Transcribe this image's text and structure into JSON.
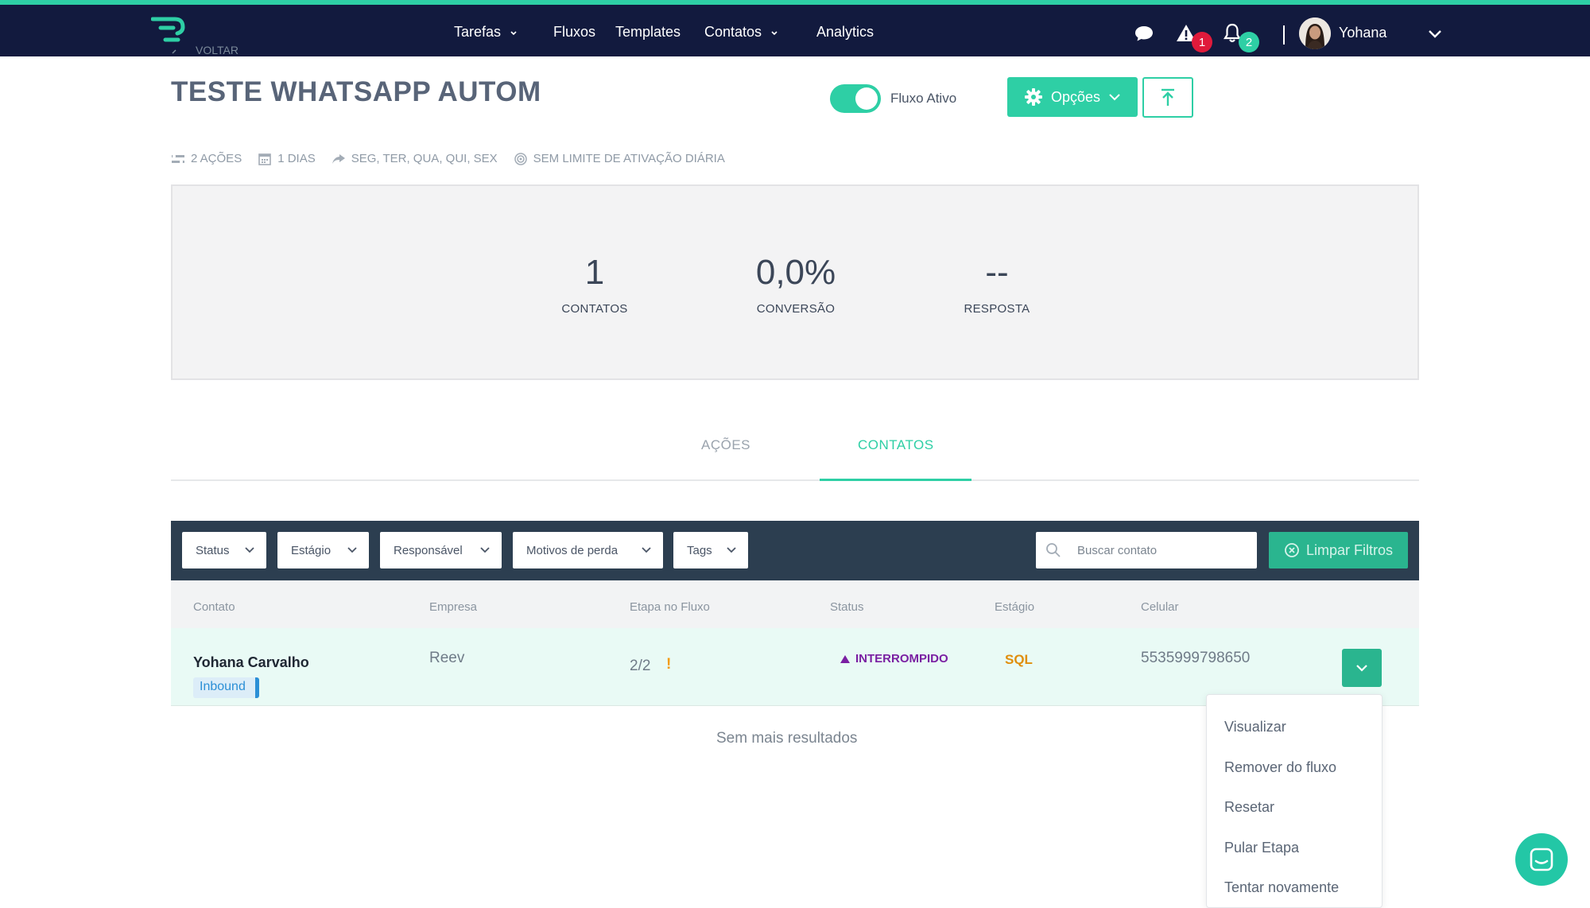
{
  "nav": {
    "items": [
      {
        "label": "Tarefas",
        "has_dropdown": true
      },
      {
        "label": "Fluxos",
        "has_dropdown": false
      },
      {
        "label": "Templates",
        "has_dropdown": false
      },
      {
        "label": "Contatos",
        "has_dropdown": true
      },
      {
        "label": "Analytics",
        "has_dropdown": false
      }
    ],
    "alert_count": "1",
    "notification_count": "2",
    "user_name": "Yohana"
  },
  "header": {
    "back_label": "VOLTAR",
    "title": "TESTE WHATSAPP AUTOM",
    "toggle_label": "Fluxo Ativo",
    "toggle_on": true,
    "options_label": "Opções"
  },
  "meta": {
    "actions": "2 AÇÕES",
    "days": "1 DIAS",
    "weekdays": "SEG, TER, QUA, QUI, SEX",
    "limit": "SEM LIMITE DE ATIVAÇÃO DIÁRIA"
  },
  "stats": [
    {
      "value": "1",
      "label": "CONTATOS"
    },
    {
      "value": "0,0%",
      "label": "CONVERSÃO"
    },
    {
      "value": "--",
      "label": "RESPOSTA"
    }
  ],
  "tabs": [
    {
      "label": "AÇÕES",
      "active": false
    },
    {
      "label": "CONTATOS",
      "active": true
    }
  ],
  "filters": {
    "dropdowns": [
      "Status",
      "Estágio",
      "Responsável",
      "Motivos de perda",
      "Tags"
    ],
    "search_placeholder": "Buscar contato",
    "clear_label": "Limpar Filtros"
  },
  "table": {
    "columns": [
      "Contato",
      "Empresa",
      "Etapa no Fluxo",
      "Status",
      "Estágio",
      "Celular"
    ],
    "rows": [
      {
        "contact": "Yohana Carvalho",
        "tag": "Inbound",
        "company": "Reev",
        "flow_step": "2/2",
        "flow_warning": "!",
        "status": "INTERROMPIDO",
        "stage": "SQL",
        "phone": "5535999798650"
      }
    ],
    "empty_message": "Sem mais resultados"
  },
  "row_menu": {
    "items": [
      "Visualizar",
      "Remover do fluxo",
      "Resetar",
      "Pular Etapa",
      "Tentar novamente"
    ]
  },
  "colors": {
    "accent": "#2ecfa5",
    "nav_bg": "#121a3e",
    "filter_bar": "#2c3e50",
    "status_interrupted": "#7a1fa2",
    "stage_sql": "#e08e0b",
    "alert_badge": "#e01a3b"
  }
}
